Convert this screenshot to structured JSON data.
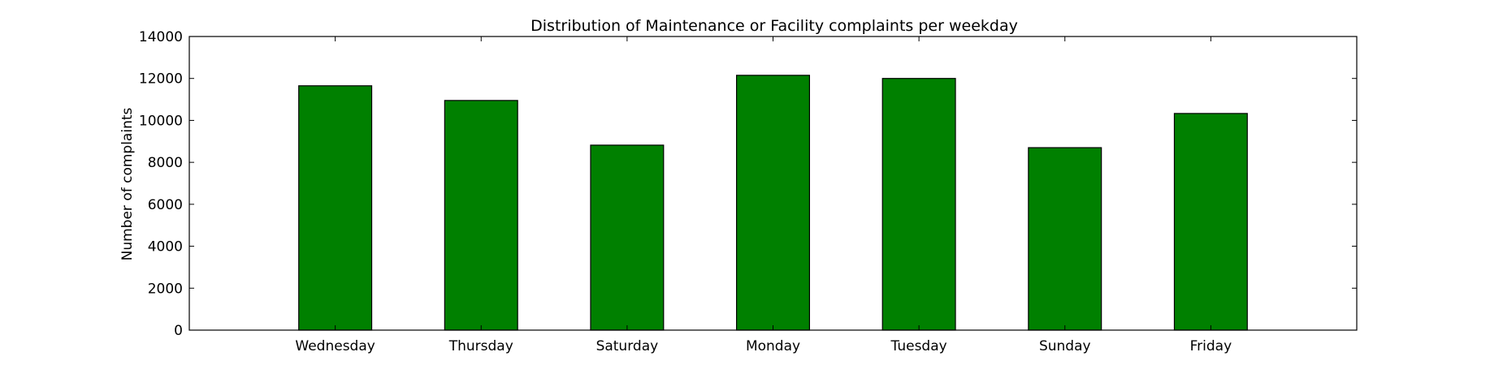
{
  "chart_data": {
    "type": "bar",
    "title": "Distribution of  Maintenance or Facility complaints per weekday",
    "xlabel": "",
    "ylabel": "Number of complaints",
    "categories": [
      "Wednesday",
      "Thursday",
      "Saturday",
      "Monday",
      "Tuesday",
      "Sunday",
      "Friday"
    ],
    "values": [
      11650,
      10950,
      8820,
      12150,
      12000,
      8700,
      10330
    ],
    "ylim": [
      0,
      14000
    ],
    "yticks": [
      0,
      2000,
      4000,
      6000,
      8000,
      10000,
      12000,
      14000
    ],
    "grid": false,
    "bar_color": "#008000",
    "edge_color": "#000000"
  }
}
